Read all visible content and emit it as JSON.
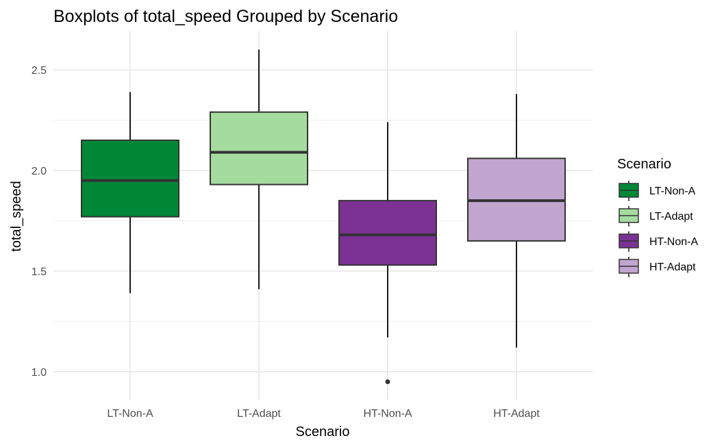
{
  "chart_data": {
    "type": "boxplot",
    "title": "Boxplots of total_speed Grouped by Scenario",
    "xlabel": "Scenario",
    "ylabel": "total_speed",
    "ylim": [
      0.88,
      2.65
    ],
    "yticks": [
      1.0,
      1.5,
      2.0,
      2.5
    ],
    "ytick_labels": [
      "1.0",
      "1.5",
      "2.0",
      "2.5"
    ],
    "grid": true,
    "legend": {
      "title": "Scenario",
      "placement": "right"
    },
    "categories": [
      "LT-Non-A",
      "LT-Adapt",
      "HT-Non-A",
      "HT-Adapt"
    ],
    "series": [
      {
        "name": "LT-Non-A",
        "color": "#008837",
        "whisker_low": 1.39,
        "q1": 1.77,
        "median": 1.95,
        "q3": 2.15,
        "whisker_high": 2.39,
        "outliers": []
      },
      {
        "name": "LT-Adapt",
        "color": "#a6dba0",
        "whisker_low": 1.41,
        "q1": 1.93,
        "median": 2.09,
        "q3": 2.29,
        "whisker_high": 2.6,
        "outliers": []
      },
      {
        "name": "HT-Non-A",
        "color": "#7b3294",
        "whisker_low": 1.17,
        "q1": 1.53,
        "median": 1.68,
        "q3": 1.85,
        "whisker_high": 2.24,
        "outliers": [
          0.95
        ]
      },
      {
        "name": "HT-Adapt",
        "color": "#c2a5cf",
        "whisker_low": 1.12,
        "q1": 1.65,
        "median": 1.85,
        "q3": 2.06,
        "whisker_high": 2.38,
        "outliers": []
      }
    ]
  }
}
